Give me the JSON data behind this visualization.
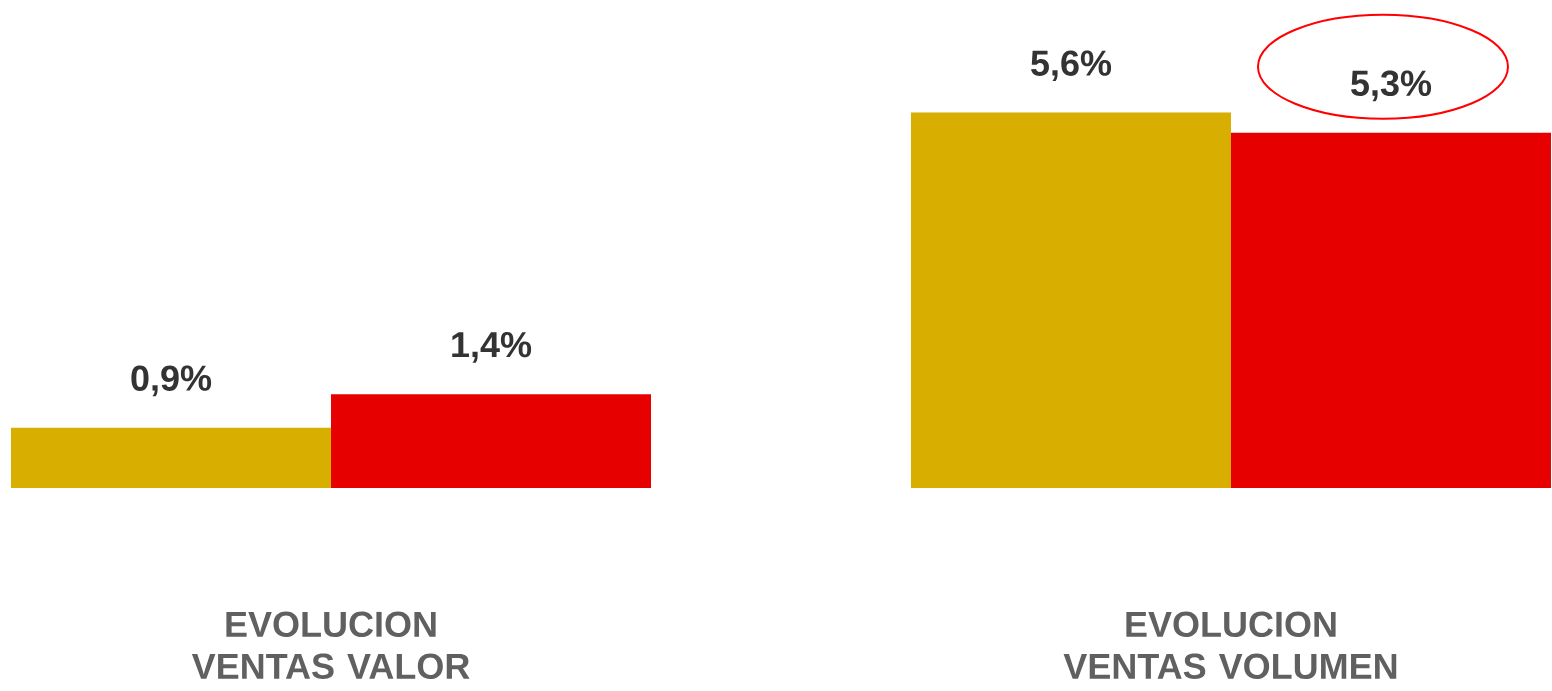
{
  "chart_data": {
    "type": "bar",
    "categories": [
      "EVOLUCION VENTAS VALOR",
      "EVOLUCION VENTAS VOLUMEN"
    ],
    "series": [
      {
        "color": "#d8ae00",
        "values": [
          0.9,
          5.6
        ],
        "value_labels": [
          "0,9%",
          "5,6%"
        ]
      },
      {
        "color": "#e60000",
        "values": [
          1.4,
          5.3
        ],
        "value_labels": [
          "1,4%",
          "5,3%"
        ]
      }
    ],
    "legend": false
  }
}
